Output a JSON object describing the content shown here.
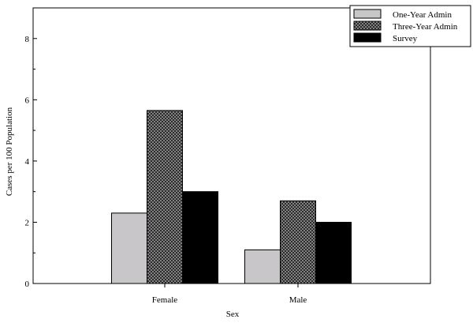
{
  "chart_data": {
    "type": "bar",
    "title": "",
    "xlabel": "Sex",
    "ylabel": "Cases per 100 Population",
    "categories": [
      "Female",
      "Male"
    ],
    "ylim": [
      0,
      9
    ],
    "yticks": [
      0,
      2,
      4,
      6,
      8
    ],
    "grid": false,
    "legend_position": "top-right",
    "series": [
      {
        "name": "One-Year Admin",
        "values": [
          2.3,
          1.1
        ],
        "fill": "solid-light-gray",
        "color": "#c8c6c8"
      },
      {
        "name": "Three-Year Admin",
        "values": [
          5.65,
          2.7
        ],
        "fill": "crosshatch",
        "color": "#6e6e6e"
      },
      {
        "name": "Survey",
        "values": [
          3.0,
          2.0
        ],
        "fill": "solid-black",
        "color": "#000000"
      }
    ]
  }
}
